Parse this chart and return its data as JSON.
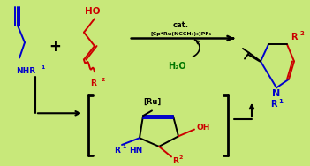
{
  "background_color": "#c8e87a",
  "blue": "#0000cc",
  "red": "#cc0000",
  "green": "#007700",
  "black": "#000000",
  "cat_line1": "cat.",
  "cat_line2": "[Cp*Ru(NCCH₃)₃]PF₆",
  "h2o": "H₂O",
  "ru_label": "[Ru]"
}
